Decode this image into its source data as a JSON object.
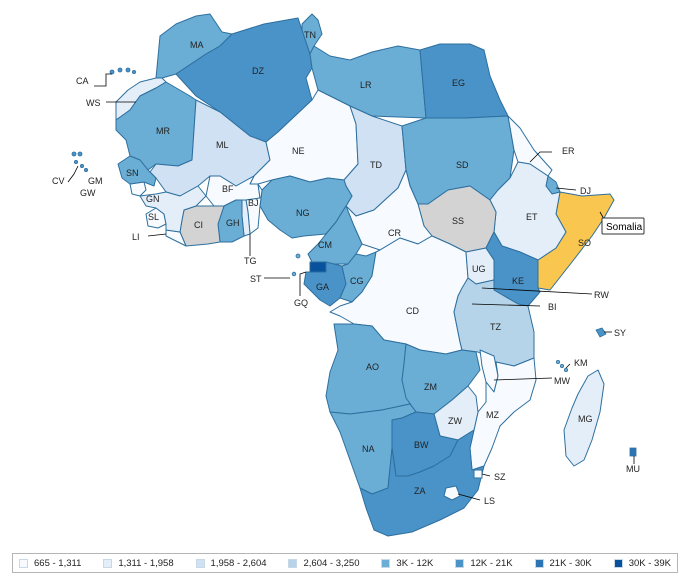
{
  "legend": {
    "bins": [
      {
        "label": "665 - 1,311",
        "color": "#f7fbff"
      },
      {
        "label": "1,311 - 1,958",
        "color": "#e3eef9"
      },
      {
        "label": "1,958 - 2,604",
        "color": "#cfe1f2"
      },
      {
        "label": "2,604 - 3,250",
        "color": "#b5d4ea"
      },
      {
        "label": "3K - 12K",
        "color": "#6aaed6"
      },
      {
        "label": "12K - 21K",
        "color": "#4a93c9"
      },
      {
        "label": "21K - 30K",
        "color": "#2b75b5"
      },
      {
        "label": "30K - 39K",
        "color": "#08519c"
      }
    ]
  },
  "colors": {
    "border": "#2e6f9e",
    "no_data": "#d3d3d3",
    "highlight": "#f9c74f"
  },
  "tooltip": {
    "text": "Somalia"
  },
  "country_labels": {
    "MA": "MA",
    "DZ": "DZ",
    "TN": "TN",
    "LR": "LR",
    "EG": "EG",
    "WS": "WS",
    "MR": "MR",
    "ML": "ML",
    "NE": "NE",
    "TD": "TD",
    "SD": "SD",
    "ER": "ER",
    "DJ": "DJ",
    "SO": "SO",
    "ET": "ET",
    "SS": "SS",
    "CR": "CR",
    "NG": "NG",
    "BF": "BF",
    "BJ": "BJ",
    "TG": "TG",
    "GH": "GH",
    "CI": "CI",
    "SL": "SL",
    "LI": "LI",
    "GN": "GN",
    "GW": "GW",
    "GM": "GM",
    "SN": "SN",
    "CV": "CV",
    "CA": "CA",
    "CM": "CM",
    "GA": "GA",
    "CG": "CG",
    "GQ": "GQ",
    "ST": "ST",
    "CD": "CD",
    "UG": "UG",
    "KE": "KE",
    "RW": "RW",
    "BI": "BI",
    "TZ": "TZ",
    "AO": "AO",
    "ZM": "ZM",
    "MW": "MW",
    "MZ": "MZ",
    "ZW": "ZW",
    "NA": "NA",
    "BW": "BW",
    "ZA": "ZA",
    "SZ": "SZ",
    "LS": "LS",
    "MG": "MG",
    "KM": "KM",
    "SY": "SY",
    "MU": "MU"
  }
}
